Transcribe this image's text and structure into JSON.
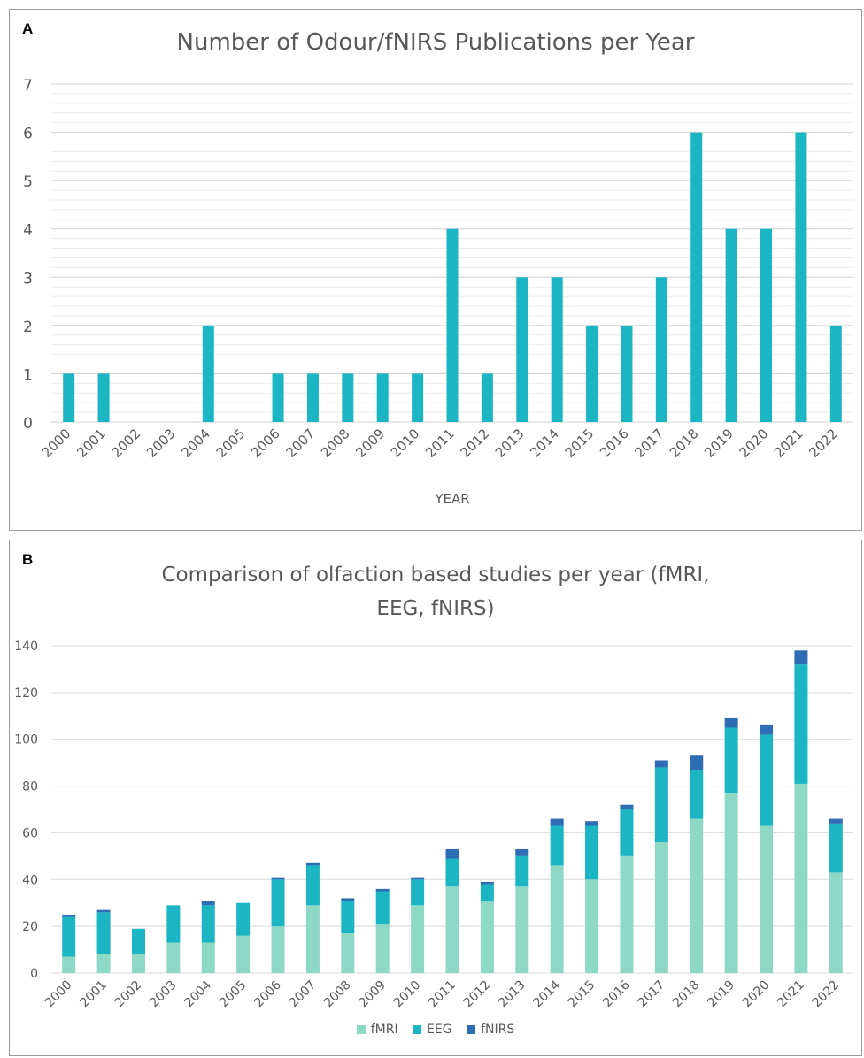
{
  "figure": {
    "panel_a_letter": "A",
    "panel_b_letter": "B"
  },
  "chart_data": [
    {
      "type": "bar",
      "title": "Number of Odour/fNIRS Publications per Year",
      "xlabel": "YEAR",
      "ylabel": "",
      "categories": [
        "2000",
        "2001",
        "2002",
        "2003",
        "2004",
        "2005",
        "2006",
        "2007",
        "2008",
        "2009",
        "2010",
        "2011",
        "2012",
        "2013",
        "2014",
        "2015",
        "2016",
        "2017",
        "2018",
        "2019",
        "2020",
        "2021",
        "2022"
      ],
      "values": [
        1,
        1,
        0,
        0,
        2,
        0,
        1,
        1,
        1,
        1,
        1,
        4,
        1,
        3,
        3,
        2,
        2,
        3,
        6,
        4,
        4,
        6,
        2
      ],
      "ylim": [
        0,
        7
      ],
      "yticks": [
        0,
        1,
        2,
        3,
        4,
        5,
        6,
        7
      ],
      "grid": true,
      "color": "#1bb5c3"
    },
    {
      "type": "bar",
      "stacked": true,
      "title": "Comparison of olfaction based studies per year (fMRI, EEG, fNIRS)",
      "xlabel": "",
      "ylabel": "",
      "categories": [
        "2000",
        "2001",
        "2002",
        "2003",
        "2004",
        "2005",
        "2006",
        "2007",
        "2008",
        "2009",
        "2010",
        "2011",
        "2012",
        "2013",
        "2014",
        "2015",
        "2016",
        "2017",
        "2018",
        "2019",
        "2020",
        "2021",
        "2022"
      ],
      "series": [
        {
          "name": "fMRI",
          "color": "#8dd9c6",
          "values": [
            7,
            8,
            8,
            13,
            13,
            16,
            20,
            29,
            17,
            21,
            29,
            37,
            31,
            37,
            46,
            40,
            50,
            56,
            66,
            77,
            63,
            81,
            43
          ]
        },
        {
          "name": "EEG",
          "color": "#1bb5c3",
          "values": [
            17,
            18,
            11,
            16,
            16,
            14,
            20,
            17,
            14,
            14,
            11,
            12,
            7,
            13,
            17,
            23,
            20,
            32,
            21,
            28,
            39,
            51,
            21
          ]
        },
        {
          "name": "fNIRS",
          "color": "#2e6db3",
          "values": [
            1,
            1,
            0,
            0,
            2,
            0,
            1,
            1,
            1,
            1,
            1,
            4,
            1,
            3,
            3,
            2,
            2,
            3,
            6,
            4,
            4,
            6,
            2
          ]
        }
      ],
      "ylim": [
        0,
        140
      ],
      "yticks": [
        0,
        20,
        40,
        60,
        80,
        100,
        120,
        140
      ],
      "grid": true,
      "legend": "bottom"
    }
  ]
}
